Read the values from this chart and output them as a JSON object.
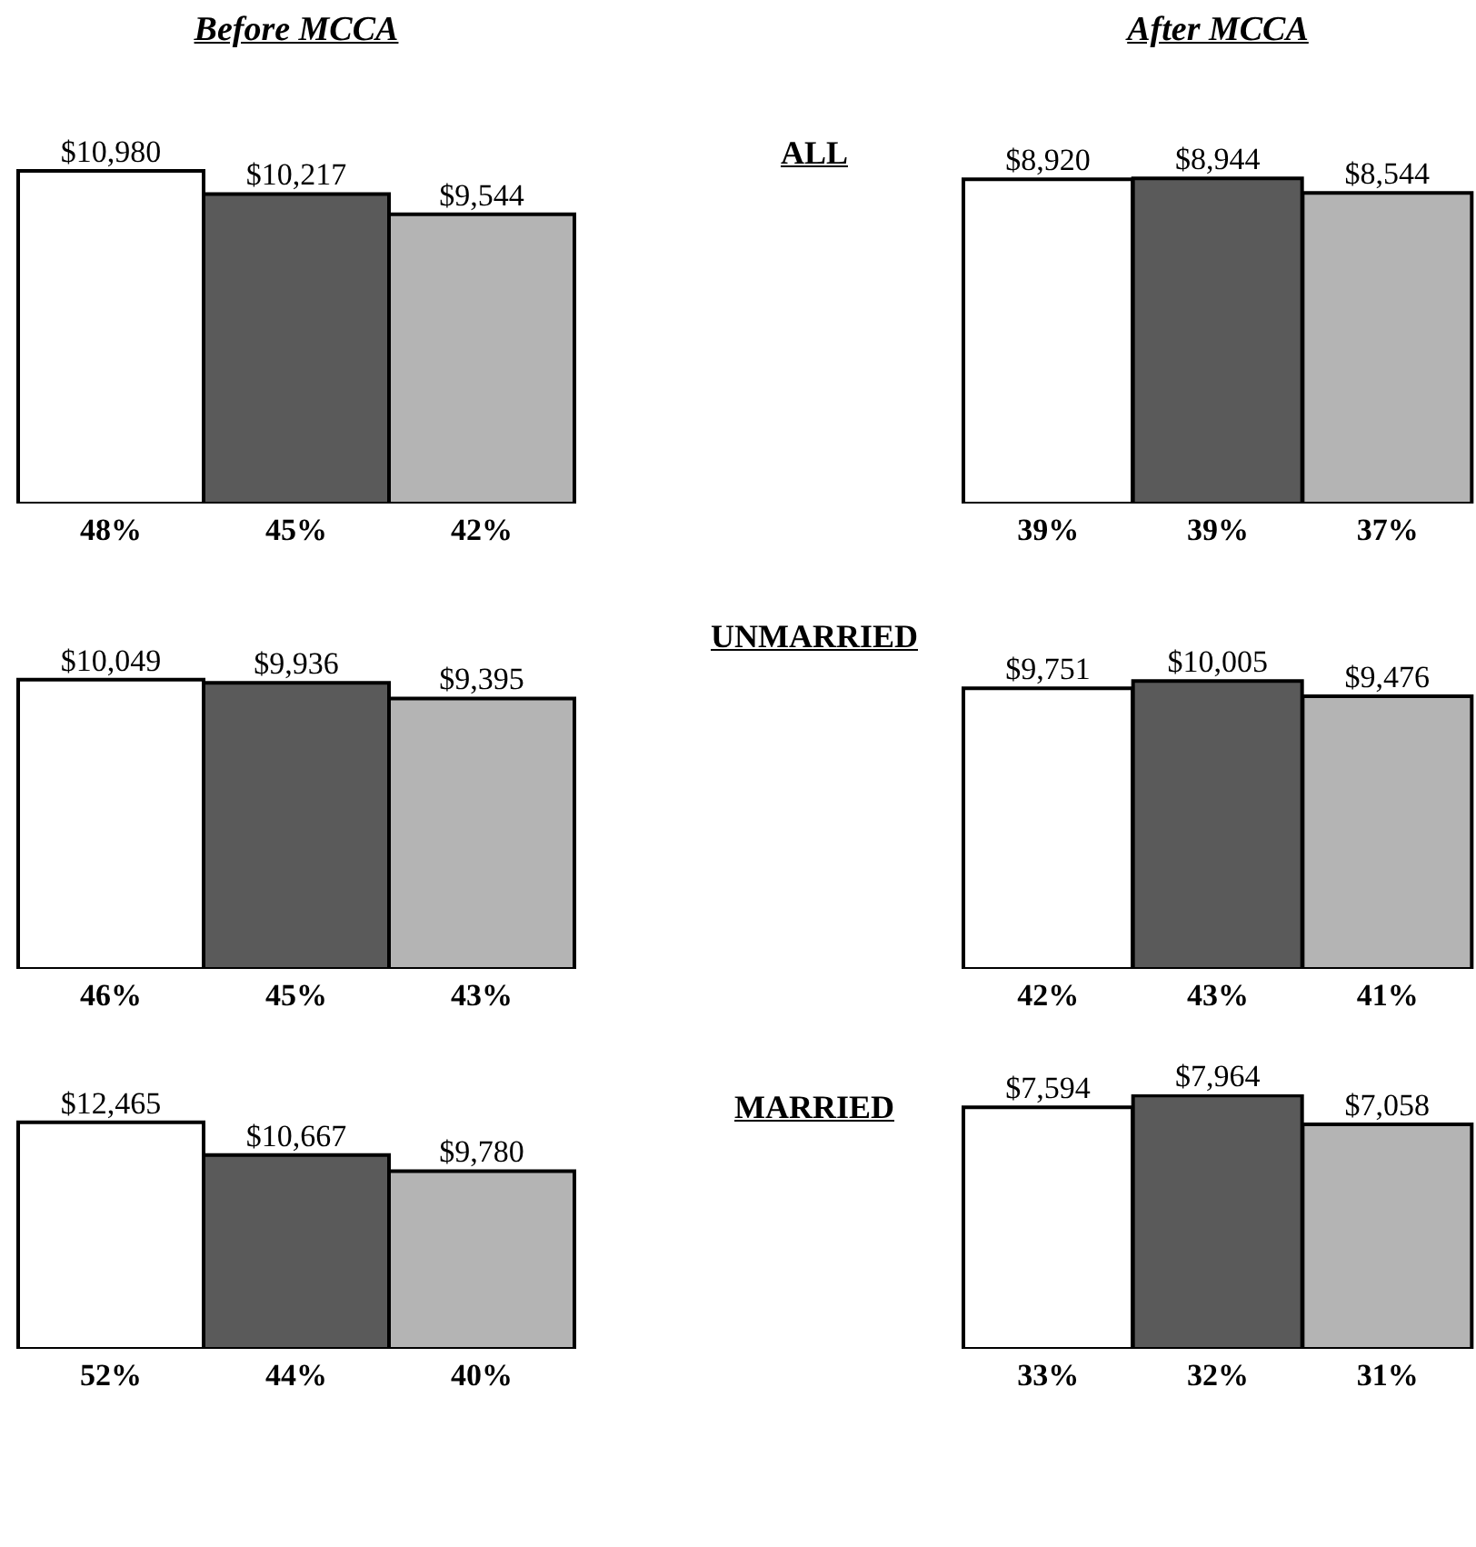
{
  "chart_data": [
    {
      "type": "bar",
      "title": "Before MCCA",
      "categories": [
        "48%",
        "45%",
        "42%"
      ],
      "values": [
        10980,
        10217,
        9544
      ],
      "value_labels": [
        "$10,980",
        "$10,217",
        "$9,544"
      ],
      "colors": [
        "#ffffff",
        "#5a5a5a",
        "#b4b4b4"
      ],
      "tick_labels": "x"
    },
    {
      "type": "bar",
      "title": "After MCCA",
      "subtitle": "ALL",
      "categories": [
        "39%",
        "39%",
        "37%"
      ],
      "values": [
        8920,
        8944,
        8544
      ],
      "value_labels": [
        "$8,920",
        "$8,944",
        "$8,544"
      ],
      "colors": [
        "#ffffff",
        "#5a5a5a",
        "#b4b4b4"
      ],
      "tick_labels": "x"
    },
    {
      "type": "bar",
      "categories": [
        "46%",
        "45%",
        "43%"
      ],
      "values": [
        10049,
        9936,
        9395
      ],
      "value_labels": [
        "$10,049",
        "$9,936",
        "$9,395"
      ],
      "colors": [
        "#ffffff",
        "#5a5a5a",
        "#b4b4b4"
      ],
      "tick_labels": "x"
    },
    {
      "type": "bar",
      "subtitle": "UNMARRIED",
      "categories": [
        "42%",
        "43%",
        "41%"
      ],
      "values": [
        9751,
        10005,
        9476
      ],
      "value_labels": [
        "$9,751",
        "$10,005",
        "$9,476"
      ],
      "colors": [
        "#ffffff",
        "#5a5a5a",
        "#b4b4b4"
      ],
      "tick_labels": "x"
    },
    {
      "type": "bar",
      "categories": [
        "52%",
        "44%",
        "40%"
      ],
      "values": [
        12465,
        10667,
        9780
      ],
      "value_labels": [
        "$12,465",
        "$10,667",
        "$9,780"
      ],
      "colors": [
        "#ffffff",
        "#5a5a5a",
        "#b4b4b4"
      ],
      "tick_labels": "x"
    },
    {
      "type": "bar",
      "subtitle": "MARRIED",
      "categories": [
        "33%",
        "32%",
        "31%"
      ],
      "values": [
        7594,
        7964,
        7058
      ],
      "value_labels": [
        "$7,594",
        "$7,964",
        "$7,058"
      ],
      "colors": [
        "#ffffff",
        "#5a5a5a",
        "#b4b4b4"
      ],
      "tick_labels": "x"
    }
  ]
}
